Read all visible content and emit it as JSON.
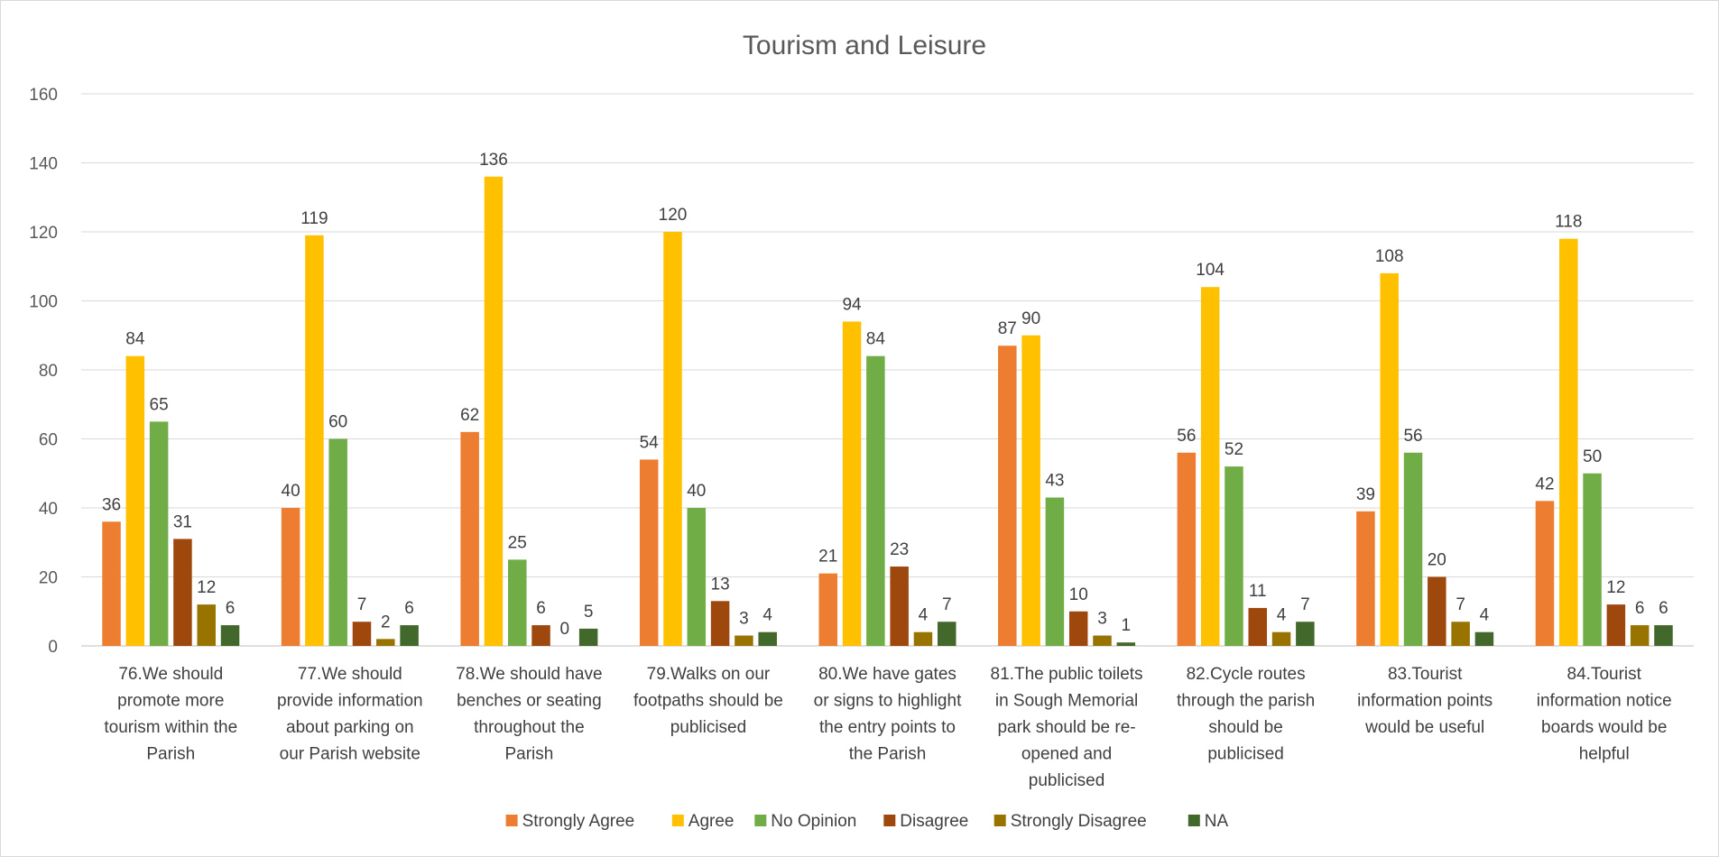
{
  "chart_data": {
    "type": "bar",
    "title": "Tourism and Leisure",
    "xlabel": "",
    "ylabel": "",
    "ylim": [
      0,
      160
    ],
    "yticks": [
      0,
      20,
      40,
      60,
      80,
      100,
      120,
      140,
      160
    ],
    "grid": true,
    "legend_position": "bottom",
    "categories": [
      "76.We should promote more tourism within the Parish",
      "77.We should provide information about parking on our Parish website",
      "78.We should have benches or seating throughout the Parish",
      "79.Walks on our footpaths should be publicised",
      "80.We have gates or signs to highlight the entry points to the Parish",
      "81.The public toilets in Sough Memorial park should be re-opened and publicised",
      "82.Cycle routes through the parish should be publicised",
      "83.Tourist information points would be useful",
      "84.Tourist information notice boards would be helpful"
    ],
    "category_lines": [
      [
        "76.We should",
        "promote more",
        "tourism within the",
        "Parish"
      ],
      [
        "77.We should",
        "provide information",
        "about parking on",
        "our Parish website"
      ],
      [
        "78.We should have",
        "benches or seating",
        "throughout the",
        "Parish"
      ],
      [
        "79.Walks on our",
        "footpaths should be",
        "publicised"
      ],
      [
        "80.We have gates",
        "or signs to highlight",
        "the entry points to",
        "the Parish"
      ],
      [
        "81.The public toilets",
        "in Sough Memorial",
        "park should be re-",
        "opened and",
        "publicised"
      ],
      [
        "82.Cycle routes",
        "through the parish",
        "should be",
        "publicised"
      ],
      [
        "83.Tourist",
        "information points",
        "would be useful"
      ],
      [
        "84.Tourist",
        "information notice",
        "boards would be",
        "helpful"
      ]
    ],
    "series": [
      {
        "name": "Strongly Agree",
        "color": "#ED7D31",
        "values": [
          36,
          40,
          62,
          54,
          21,
          87,
          56,
          39,
          42
        ]
      },
      {
        "name": "Agree",
        "color": "#FFC000",
        "values": [
          84,
          119,
          136,
          120,
          94,
          90,
          104,
          108,
          118
        ]
      },
      {
        "name": "No Opinion",
        "color": "#70AD47",
        "values": [
          65,
          60,
          25,
          40,
          84,
          43,
          52,
          56,
          50
        ]
      },
      {
        "name": "Disagree",
        "color": "#9E480E",
        "values": [
          31,
          7,
          6,
          13,
          23,
          10,
          11,
          20,
          12
        ]
      },
      {
        "name": "Strongly Disagree",
        "color": "#997300",
        "values": [
          12,
          2,
          0,
          3,
          4,
          3,
          4,
          7,
          6
        ]
      },
      {
        "name": "NA",
        "color": "#43682B",
        "values": [
          6,
          6,
          5,
          4,
          7,
          1,
          7,
          4,
          6
        ]
      }
    ]
  }
}
